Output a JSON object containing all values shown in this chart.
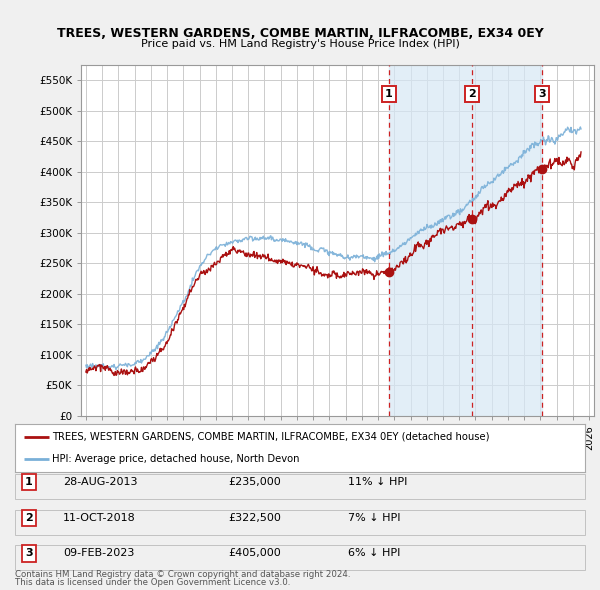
{
  "title": "TREES, WESTERN GARDENS, COMBE MARTIN, ILFRACOMBE, EX34 0EY",
  "subtitle": "Price paid vs. HM Land Registry's House Price Index (HPI)",
  "legend_line1": "TREES, WESTERN GARDENS, COMBE MARTIN, ILFRACOMBE, EX34 0EY (detached house)",
  "legend_line2": "HPI: Average price, detached house, North Devon",
  "footer1": "Contains HM Land Registry data © Crown copyright and database right 2024.",
  "footer2": "This data is licensed under the Open Government Licence v3.0.",
  "ylim": [
    0,
    575000
  ],
  "yticks": [
    0,
    50000,
    100000,
    150000,
    200000,
    250000,
    300000,
    350000,
    400000,
    450000,
    500000,
    550000
  ],
  "ytick_labels": [
    "£0",
    "£50K",
    "£100K",
    "£150K",
    "£200K",
    "£250K",
    "£300K",
    "£350K",
    "£400K",
    "£450K",
    "£500K",
    "£550K"
  ],
  "xlim_start": 1994.7,
  "xlim_end": 2026.3,
  "sale_years": [
    2013.66,
    2018.78,
    2023.11
  ],
  "sale_prices": [
    235000,
    322500,
    405000
  ],
  "sale_labels": [
    "1",
    "2",
    "3"
  ],
  "sale_date_strs": [
    "28-AUG-2013",
    "11-OCT-2018",
    "09-FEB-2023"
  ],
  "sale_price_strs": [
    "£235,000",
    "£322,500",
    "£405,000"
  ],
  "sale_hpi_strs": [
    "11% ↓ HPI",
    "7% ↓ HPI",
    "6% ↓ HPI"
  ],
  "hpi_color": "#7ab0d8",
  "price_color": "#aa1111",
  "vline_color": "#cc2222",
  "label_box_color": "#cc2222",
  "grid_color": "#cccccc",
  "shade_color": "#d6e8f5",
  "bg_color": "#f0f0f0",
  "plot_bg_color": "#ffffff"
}
